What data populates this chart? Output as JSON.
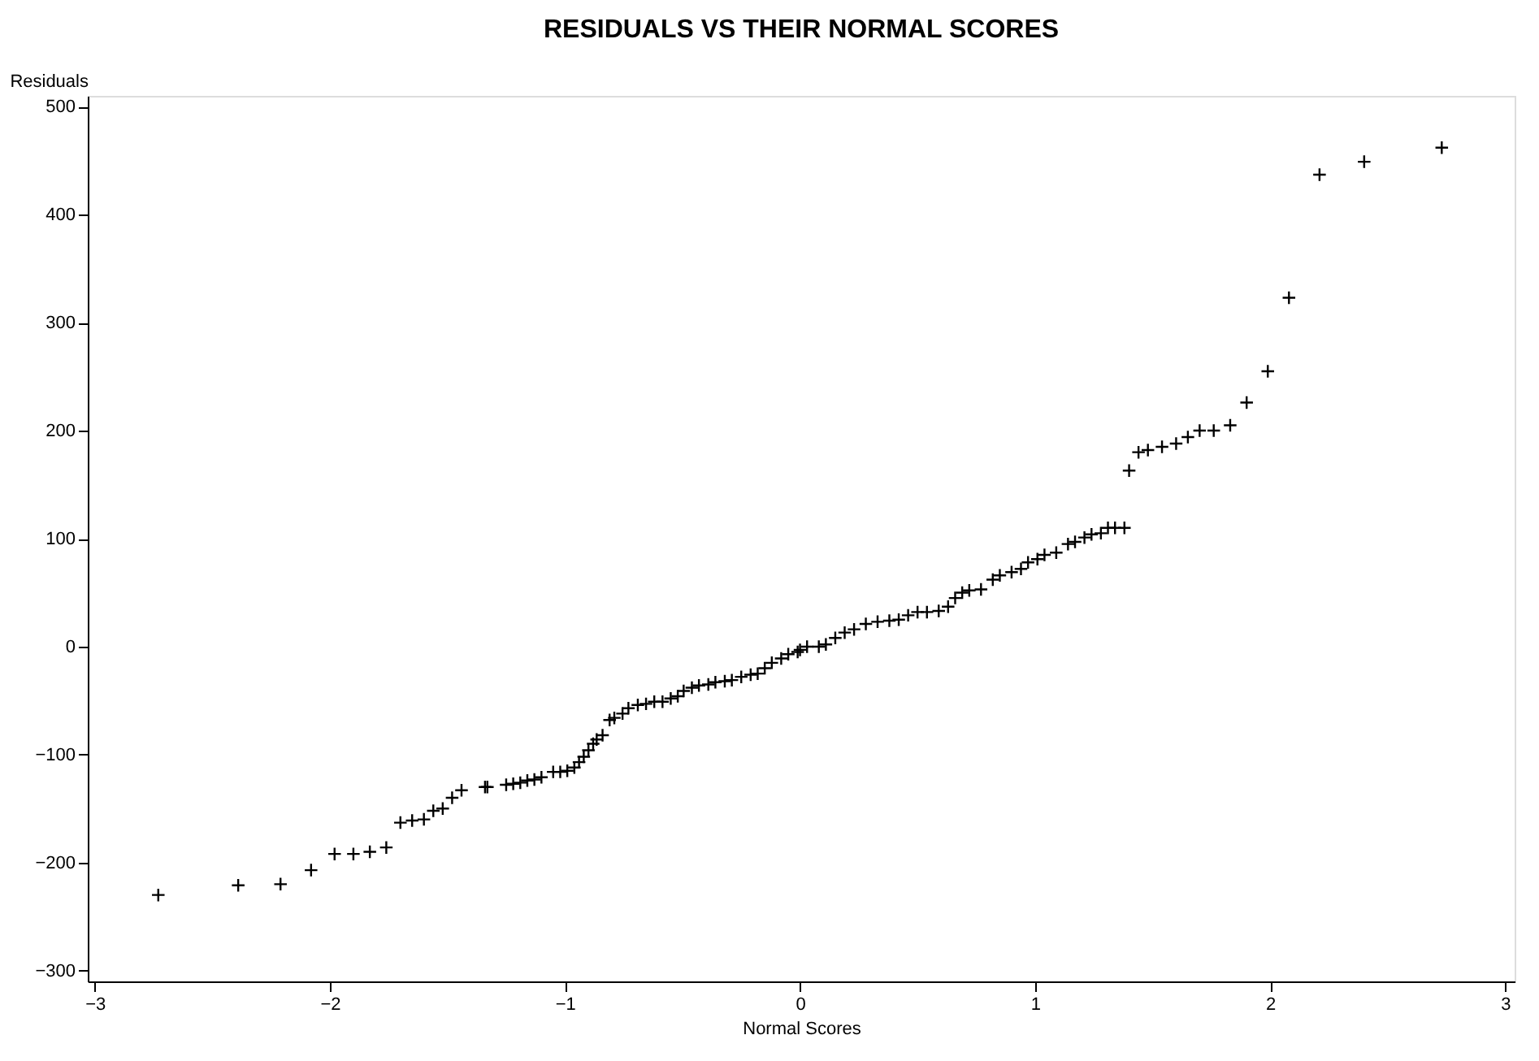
{
  "chart_data": {
    "type": "scatter",
    "title": "RESIDUALS VS THEIR NORMAL SCORES",
    "xlabel": "Normal Scores",
    "ylabel": "Residuals",
    "x": [
      -2.73,
      -2.39,
      -2.21,
      -2.08,
      -1.98,
      -1.9,
      -1.83,
      -1.76,
      -1.7,
      -1.65,
      -1.6,
      -1.56,
      -1.52,
      -1.48,
      -1.44,
      -1.34,
      -1.33,
      -1.25,
      -1.22,
      -1.19,
      -1.16,
      -1.13,
      -1.1,
      -1.05,
      -1.02,
      -0.99,
      -0.96,
      -0.94,
      -0.92,
      -0.9,
      -0.88,
      -0.865,
      -0.84,
      -0.81,
      -0.79,
      -0.755,
      -0.73,
      -0.69,
      -0.655,
      -0.62,
      -0.585,
      -0.55,
      -0.52,
      -0.495,
      -0.46,
      -0.43,
      -0.39,
      -0.36,
      -0.32,
      -0.29,
      -0.25,
      -0.21,
      -0.18,
      -0.15,
      -0.12,
      -0.08,
      -0.05,
      -0.01,
      0.0,
      0.03,
      0.08,
      0.11,
      0.15,
      0.19,
      0.23,
      0.28,
      0.33,
      0.38,
      0.42,
      0.46,
      0.5,
      0.54,
      0.59,
      0.63,
      0.66,
      0.69,
      0.72,
      0.77,
      0.82,
      0.85,
      0.9,
      0.94,
      0.97,
      1.01,
      1.04,
      1.09,
      1.14,
      1.17,
      1.21,
      1.24,
      1.28,
      1.31,
      1.34,
      1.38,
      1.4,
      1.44,
      1.48,
      1.54,
      1.6,
      1.65,
      1.7,
      1.76,
      1.83,
      1.9,
      1.99,
      2.08,
      2.21,
      2.4,
      2.73
    ],
    "values": [
      -230,
      -221,
      -220,
      -207,
      -192,
      -192,
      -190,
      -186,
      -163,
      -161,
      -160,
      -152,
      -150,
      -140,
      -133,
      -130,
      -130,
      -128,
      -127,
      -126,
      -124,
      -123,
      -121,
      -116,
      -116,
      -115,
      -112,
      -107,
      -102,
      -96,
      -90,
      -86,
      -82,
      -68,
      -66,
      -62,
      -57,
      -54,
      -53,
      -51,
      -51,
      -48,
      -46,
      -41,
      -38,
      -36,
      -35,
      -33,
      -32,
      -31,
      -28,
      -26,
      -25,
      -20,
      -15,
      -11,
      -7,
      -5,
      -3,
      0,
      0,
      2,
      8,
      13,
      16,
      21,
      23,
      24,
      25,
      29,
      32,
      32,
      33,
      37,
      45,
      50,
      52,
      53,
      62,
      66,
      69,
      72,
      78,
      81,
      85,
      87,
      95,
      97,
      101,
      104,
      105,
      110,
      110,
      110,
      163,
      180,
      182,
      185,
      188,
      194,
      200,
      200,
      205,
      226,
      255,
      323,
      437,
      449,
      462
    ],
    "color": "#000000",
    "marker": "cross",
    "xlim": [
      -3.03,
      3.04
    ],
    "ylim": [
      -310,
      510
    ],
    "xticks": [
      -3,
      -2,
      -1,
      0,
      1,
      2,
      3
    ],
    "yticks": [
      -300,
      -200,
      -100,
      0,
      100,
      200,
      300,
      400,
      500
    ],
    "grid": false
  }
}
